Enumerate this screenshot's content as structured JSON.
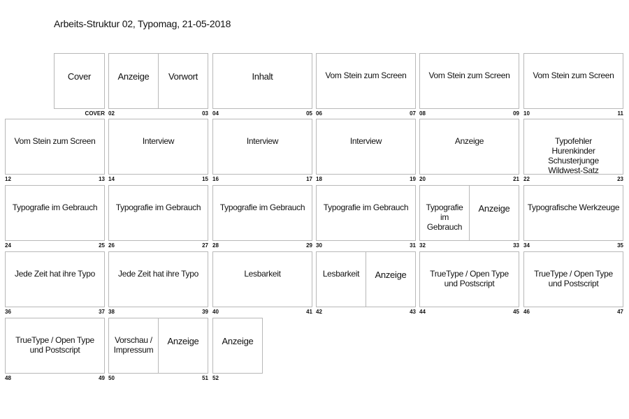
{
  "title": "Arbeits-Struktur 02, Typomag, 21-05-2018",
  "rows": [
    [
      {
        "type": "single-right",
        "pages": [
          "Cover"
        ],
        "left": "",
        "right": "COVER"
      },
      {
        "pages": [
          "Anzeige",
          "Vorwort"
        ],
        "left": "02",
        "right": "03"
      },
      {
        "pages": [
          "Inhalt"
        ],
        "left": "04",
        "right": "05"
      },
      {
        "pages": [
          "Vom Stein zum Screen"
        ],
        "left": "06",
        "right": "07"
      },
      {
        "pages": [
          "Vom Stein zum Screen"
        ],
        "left": "08",
        "right": "09"
      },
      {
        "pages": [
          "Vom Stein zum Screen"
        ],
        "left": "10",
        "right": "11"
      }
    ],
    [
      {
        "pages": [
          "Vom Stein zum Screen"
        ],
        "left": "12",
        "right": "13"
      },
      {
        "pages": [
          "Interview"
        ],
        "left": "14",
        "right": "15"
      },
      {
        "pages": [
          "Interview"
        ],
        "left": "16",
        "right": "17"
      },
      {
        "pages": [
          "Interview"
        ],
        "left": "18",
        "right": "19"
      },
      {
        "pages": [
          "Anzeige"
        ],
        "left": "20",
        "right": "21"
      },
      {
        "pages": [
          "Typofehler\nHurenkinder\nSchusterjunge\nWildwest-Satz"
        ],
        "left": "22",
        "right": "23"
      }
    ],
    [
      {
        "pages": [
          "Typografie im Gebrauch"
        ],
        "left": "24",
        "right": "25"
      },
      {
        "pages": [
          "Typografie im Gebrauch"
        ],
        "left": "26",
        "right": "27"
      },
      {
        "pages": [
          "Typografie im Gebrauch"
        ],
        "left": "28",
        "right": "29"
      },
      {
        "pages": [
          "Typografie im Gebrauch"
        ],
        "left": "30",
        "right": "31"
      },
      {
        "pages": [
          "Typografie im Gebrauch",
          "Anzeige"
        ],
        "left": "32",
        "right": "33"
      },
      {
        "pages": [
          "Typografische Werkzeuge"
        ],
        "left": "34",
        "right": "35"
      }
    ],
    [
      {
        "pages": [
          "Jede Zeit hat ihre Typo"
        ],
        "left": "36",
        "right": "37"
      },
      {
        "pages": [
          "Jede Zeit hat ihre Typo"
        ],
        "left": "38",
        "right": "39"
      },
      {
        "pages": [
          "Lesbarkeit"
        ],
        "left": "40",
        "right": "41"
      },
      {
        "pages": [
          "Lesbarkeit",
          "Anzeige"
        ],
        "left": "42",
        "right": "43"
      },
      {
        "pages": [
          "TrueType / Open Type und Postscript"
        ],
        "left": "44",
        "right": "45"
      },
      {
        "pages": [
          "TrueType / Open Type und Postscript"
        ],
        "left": "46",
        "right": "47"
      }
    ],
    [
      {
        "pages": [
          "TrueType / Open Type und Postscript"
        ],
        "left": "48",
        "right": "49"
      },
      {
        "pages": [
          "Vorschau / Impressum",
          "Anzeige"
        ],
        "left": "50",
        "right": "51"
      },
      {
        "type": "single-left",
        "pages": [
          "Anzeige"
        ],
        "left": "52",
        "right": ""
      }
    ]
  ]
}
